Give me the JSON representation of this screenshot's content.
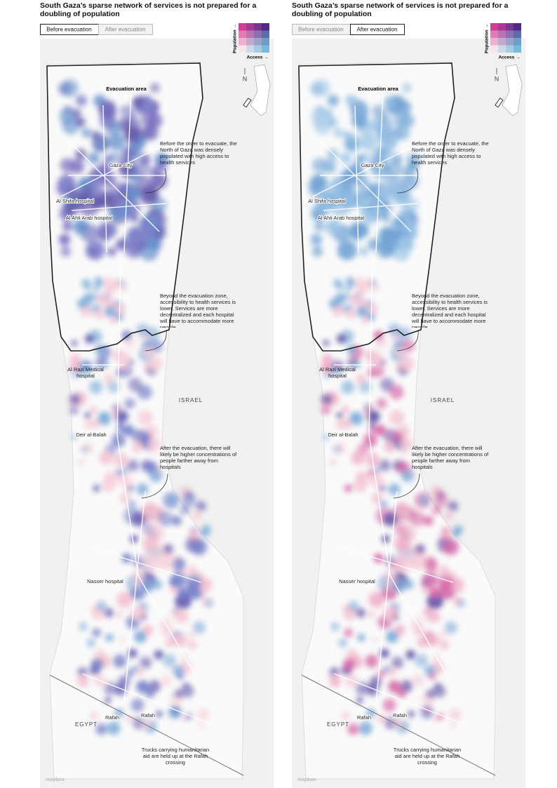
{
  "title": "South Gaza’s sparse network of services is not prepared for a doubling of population",
  "toggle": [
    "Before evacuation",
    "After evacuation"
  ],
  "panels": [
    {
      "active_toggle": 0
    },
    {
      "active_toggle": 1
    }
  ],
  "legend": {
    "y_label": "Population →",
    "x_label": "Access →"
  },
  "compass": "N",
  "regions": {
    "evacuation_area": "Evacuation area",
    "israel": "ISRAEL",
    "egypt": "EGYPT"
  },
  "places": [
    "Gaza City",
    "Al Shifa hospital",
    "Al Ahli Arab hospital",
    "Al Razi Medical hospital",
    "Deir al-Balah",
    "Nasser hospital",
    "Rafah",
    "Rafah"
  ],
  "annotations": [
    "Before the order to evacuate, the North of Gaza was densely populated with high access to health services",
    "Beyond the evacuation zone, accessibility to health services is lower. Services are more decentralized and each hospital will have to accommodate more people",
    "After the evacuation, there will likely be higher concentrations of people farther away from hospitals",
    "Trucks carrying humanitarian aid are held up at the Rafah crossing"
  ],
  "attribution": "mapbox"
}
